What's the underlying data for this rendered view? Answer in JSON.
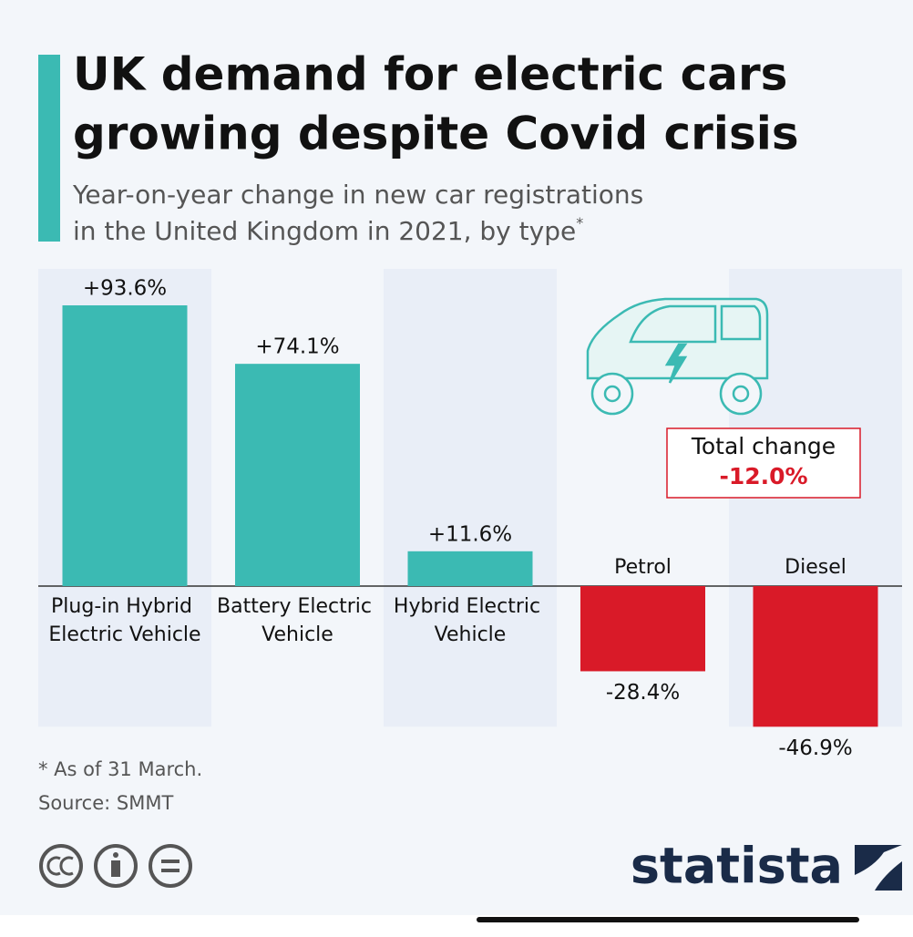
{
  "chart_data": {
    "type": "bar",
    "title": [
      "UK demand for electric cars",
      "growing despite Covid crisis"
    ],
    "subtitle": [
      "Year-on-year change in new car registrations",
      "in the United Kingdom in 2021, by type"
    ],
    "subtitle_mark": "*",
    "categories": [
      "Plug-in Hybrid Electric Vehicle",
      "Battery Electric Vehicle",
      "Hybrid Electric Vehicle",
      "Petrol",
      "Diesel"
    ],
    "values": [
      93.6,
      74.1,
      11.6,
      -28.4,
      -46.9
    ],
    "value_labels": [
      "+93.6%",
      "+74.1%",
      "+11.6%",
      "-28.4%",
      "-46.9%"
    ],
    "colors": [
      "#3bbab3",
      "#3bbab3",
      "#3bbab3",
      "#d91a28",
      "#d91a28"
    ],
    "annotation": {
      "label": "Total change",
      "text": "-12.0%"
    },
    "footnote": "* As of 31 March.",
    "source": "Source: SMMT",
    "brand": "statista"
  }
}
